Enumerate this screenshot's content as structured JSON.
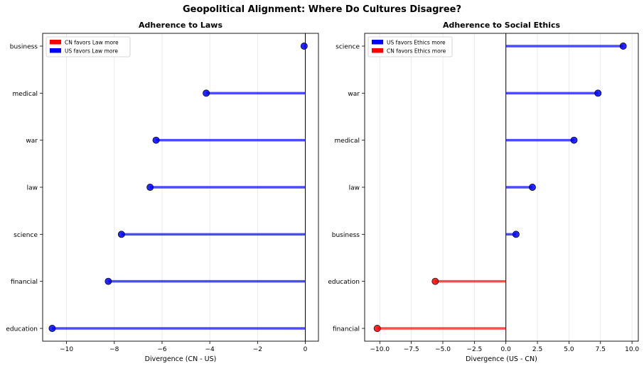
{
  "suptitle": "Geopolitical Alignment: Where Do Cultures Disagree?",
  "colors": {
    "us": "#0000ff",
    "cn": "#ff0000"
  },
  "chart_data": [
    {
      "type": "lollipop",
      "title": "Adherence to Laws",
      "xlabel": "Divergence (CN - US)",
      "ylabel": "",
      "xlim": [
        -11.0,
        0.55
      ],
      "xticks": [
        -10,
        -8,
        -6,
        -4,
        -2,
        0
      ],
      "xtick_labels": [
        "−10",
        "−8",
        "−6",
        "−4",
        "−2",
        "0"
      ],
      "grid": "vertical",
      "legend_position": "top-left",
      "legend": [
        {
          "label": "CN favors Law more",
          "color": "#ff0000"
        },
        {
          "label": "US favors Law more",
          "color": "#0000ff"
        }
      ],
      "categories": [
        "business",
        "medical",
        "war",
        "law",
        "science",
        "financial",
        "education"
      ],
      "values": [
        -0.05,
        -4.15,
        -6.25,
        -6.5,
        -7.7,
        -8.25,
        -10.6
      ]
    },
    {
      "type": "lollipop",
      "title": "Adherence to Social Ethics",
      "xlabel": "Divergence (US - CN)",
      "ylabel": "",
      "xlim": [
        -11.2,
        10.5
      ],
      "xticks": [
        -10.0,
        -7.5,
        -5.0,
        -2.5,
        0.0,
        2.5,
        5.0,
        7.5,
        10.0
      ],
      "xtick_labels": [
        "−10.0",
        "−7.5",
        "−5.0",
        "−2.5",
        "0.0",
        "2.5",
        "5.0",
        "7.5",
        "10.0"
      ],
      "grid": "vertical",
      "legend_position": "top-left",
      "legend": [
        {
          "label": "US favors Ethics more",
          "color": "#0000ff"
        },
        {
          "label": "CN favors Ethics more",
          "color": "#ff0000"
        }
      ],
      "categories": [
        "science",
        "war",
        "medical",
        "law",
        "business",
        "education",
        "financial"
      ],
      "values": [
        9.3,
        7.3,
        5.4,
        2.1,
        0.8,
        -5.6,
        -10.2
      ]
    }
  ]
}
